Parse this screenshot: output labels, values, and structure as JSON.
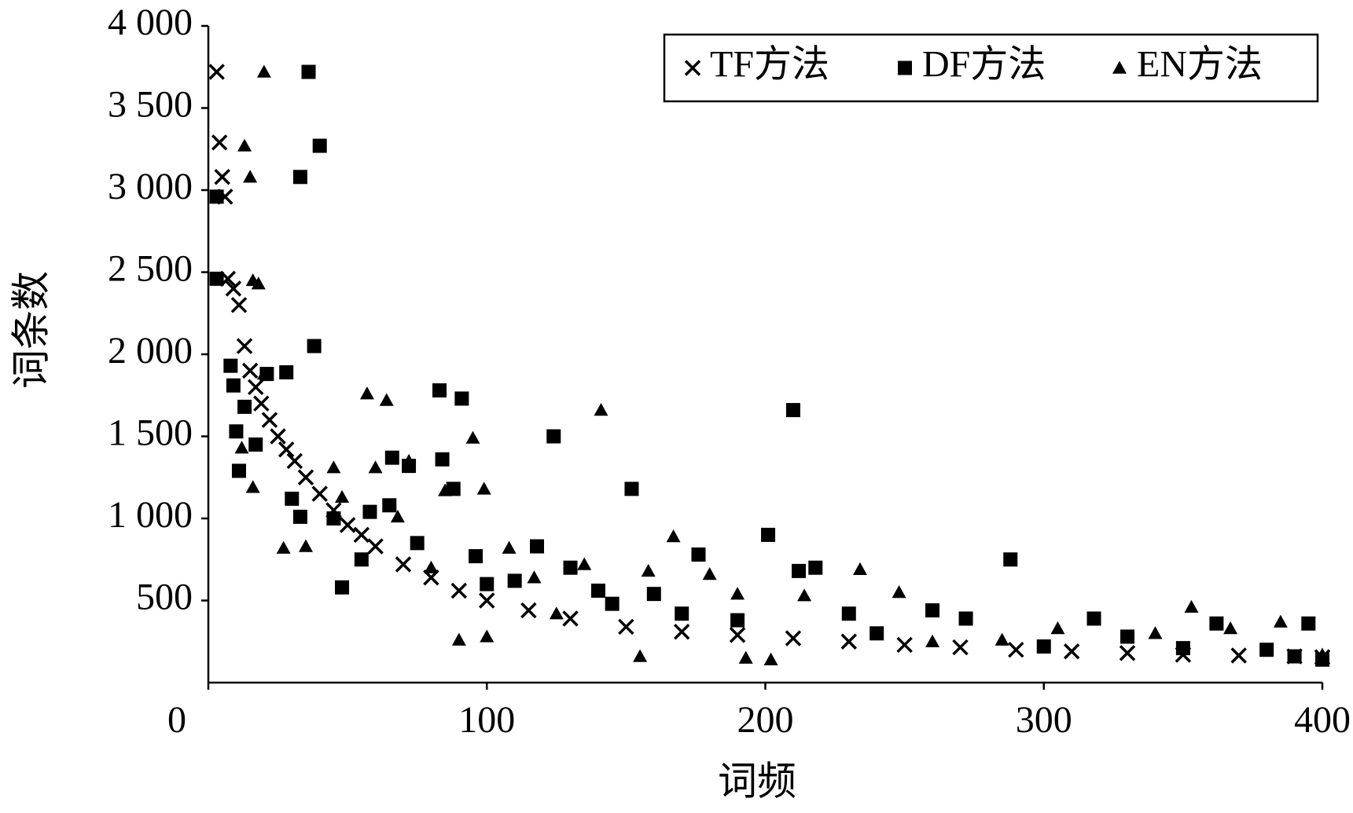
{
  "chart_data": {
    "type": "scatter",
    "x_label": "词频",
    "y_label": "词条数",
    "xlim": [
      0,
      400
    ],
    "xticks": [
      0,
      100,
      200,
      300,
      400
    ],
    "ylim": [
      0,
      4000
    ],
    "yticks": [
      500,
      {
        "value": 1000,
        "label": "1 000"
      },
      {
        "value": 1500,
        "label": "1 500"
      },
      {
        "value": 2000,
        "label": "2 000"
      },
      {
        "value": 2500,
        "label": "2 500"
      },
      {
        "value": 3000,
        "label": "3 000"
      },
      {
        "value": 3500,
        "label": "3 500"
      },
      {
        "value": 4000,
        "label": "4 000"
      }
    ],
    "legend": "upper right",
    "series": [
      {
        "name": "TF方法",
        "marker": "x",
        "color": "#000000",
        "x": [
          3,
          4,
          5,
          6,
          7,
          9,
          11,
          13,
          15,
          17,
          19,
          22,
          25,
          28,
          31,
          35,
          40,
          45,
          50,
          55,
          60,
          70,
          80,
          90,
          100,
          115,
          130,
          150,
          170,
          190,
          210,
          230,
          250,
          270,
          290,
          310,
          330,
          350,
          370,
          390,
          400
        ],
        "values": [
          3720,
          3290,
          3080,
          2960,
          2460,
          2400,
          2300,
          2050,
          1900,
          1800,
          1700,
          1600,
          1500,
          1420,
          1350,
          1250,
          1150,
          1050,
          960,
          900,
          830,
          720,
          640,
          560,
          500,
          440,
          390,
          340,
          310,
          290,
          270,
          250,
          230,
          215,
          200,
          190,
          180,
          170,
          165,
          160,
          155
        ]
      },
      {
        "name": "DF方法",
        "marker": "square",
        "color": "#000000",
        "x": [
          3,
          3,
          8,
          9,
          10,
          11,
          13,
          17,
          21,
          28,
          30,
          33,
          36,
          38,
          40,
          33,
          45,
          48,
          55,
          58,
          65,
          66,
          72,
          75,
          83,
          84,
          91,
          88,
          96,
          100,
          110,
          118,
          124,
          130,
          140,
          145,
          152,
          160,
          170,
          176,
          190,
          201,
          210,
          212,
          218,
          230,
          240,
          260,
          272,
          288,
          300,
          318,
          330,
          350,
          362,
          380,
          390,
          395,
          400
        ],
        "values": [
          2960,
          2460,
          1930,
          1810,
          1530,
          1290,
          1680,
          1450,
          1880,
          1890,
          1120,
          3080,
          3720,
          2050,
          3270,
          1010,
          1000,
          580,
          750,
          1040,
          1080,
          1370,
          1320,
          850,
          1780,
          1360,
          1730,
          1180,
          770,
          600,
          620,
          830,
          1500,
          700,
          560,
          480,
          1180,
          540,
          420,
          780,
          380,
          900,
          1660,
          680,
          700,
          420,
          300,
          440,
          390,
          750,
          220,
          390,
          280,
          210,
          360,
          200,
          160,
          360,
          140
        ]
      },
      {
        "name": "EN方法",
        "marker": "triangle",
        "color": "#000000",
        "x": [
          20,
          13,
          15,
          16,
          18,
          20,
          12,
          16,
          27,
          35,
          45,
          48,
          57,
          60,
          64,
          68,
          72,
          80,
          85,
          95,
          99,
          108,
          117,
          125,
          135,
          141,
          158,
          167,
          180,
          190,
          193,
          202,
          214,
          234,
          248,
          260,
          285,
          305,
          340,
          353,
          367,
          385,
          400,
          90,
          155,
          100
        ],
        "values": [
          3720,
          3270,
          3080,
          2450,
          2430,
          1880,
          1430,
          1190,
          820,
          830,
          1310,
          1130,
          1760,
          1310,
          1720,
          1010,
          1350,
          700,
          1170,
          1490,
          1180,
          820,
          640,
          420,
          720,
          1660,
          680,
          890,
          660,
          540,
          150,
          140,
          530,
          690,
          550,
          250,
          260,
          330,
          300,
          460,
          330,
          370,
          170,
          260,
          160,
          280
        ]
      }
    ]
  }
}
